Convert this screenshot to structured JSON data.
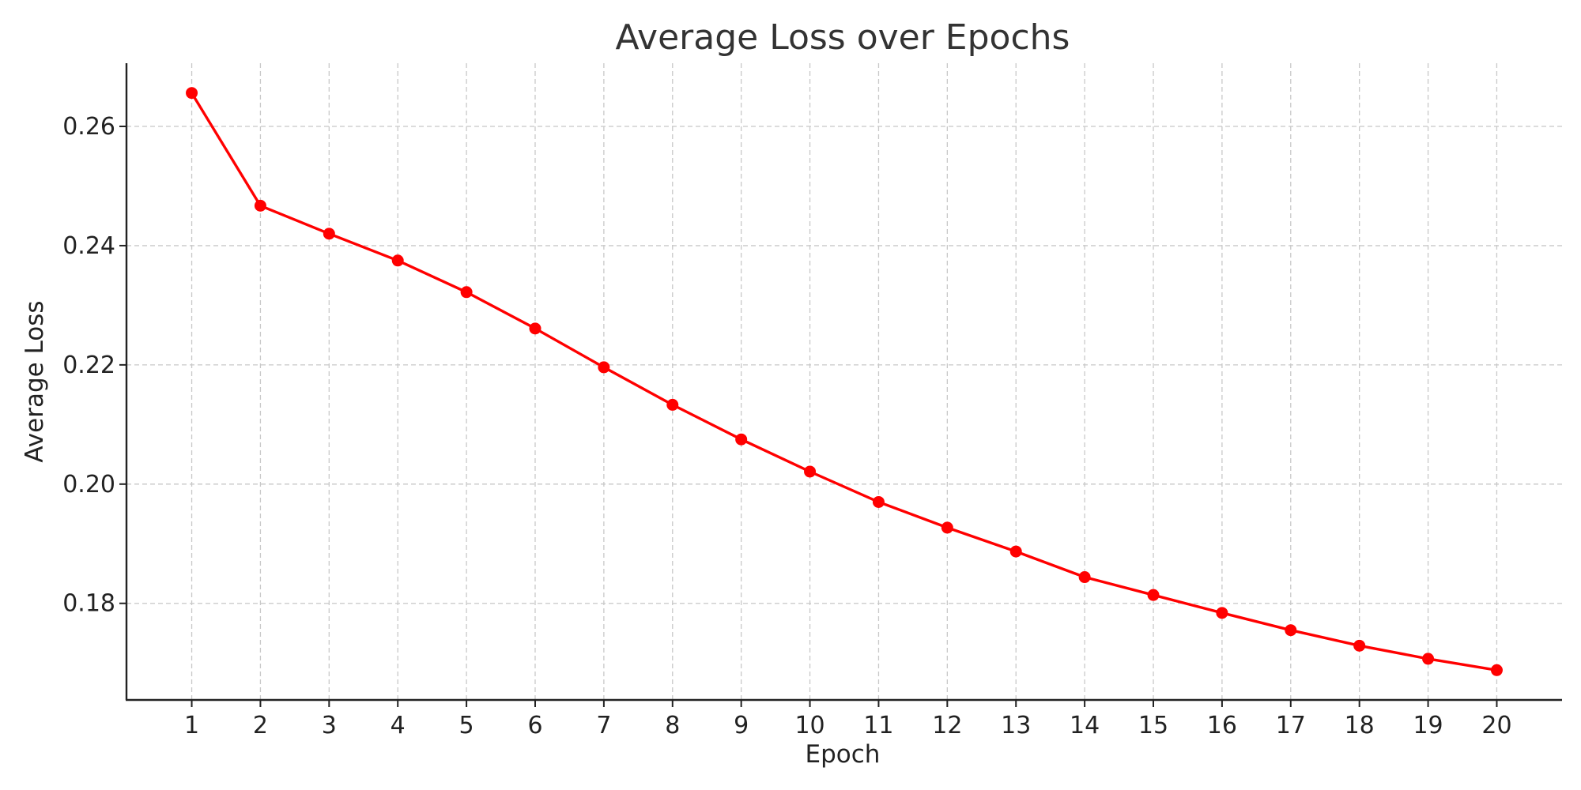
{
  "chart_data": {
    "type": "line",
    "title": "Average Loss over Epochs",
    "xlabel": "Epoch",
    "ylabel": "Average Loss",
    "x": [
      1,
      2,
      3,
      4,
      5,
      6,
      7,
      8,
      9,
      10,
      11,
      12,
      13,
      14,
      15,
      16,
      17,
      18,
      19,
      20
    ],
    "series": [
      {
        "values": [
          0.2656,
          0.2467,
          0.242,
          0.2375,
          0.2322,
          0.2261,
          0.2196,
          0.2133,
          0.2075,
          0.2021,
          0.197,
          0.1927,
          0.1887,
          0.1844,
          0.1814,
          0.1784,
          0.1755,
          0.1729,
          0.1707,
          0.1688
        ],
        "color": "#ff0000"
      }
    ],
    "xticks": [
      "1",
      "2",
      "3",
      "4",
      "5",
      "6",
      "7",
      "8",
      "9",
      "10",
      "11",
      "12",
      "13",
      "14",
      "15",
      "16",
      "17",
      "18",
      "19",
      "20"
    ],
    "yticks": [
      0.18,
      0.2,
      0.22,
      0.24,
      0.26
    ],
    "ytick_labels": [
      "0.18",
      "0.20",
      "0.22",
      "0.24",
      "0.26"
    ],
    "xlim": [
      0.05,
      20.95
    ],
    "ylim": [
      0.1638,
      0.2706
    ],
    "grid": true,
    "gridline_color": "#c8c8c8",
    "axis_color": "#222222"
  }
}
